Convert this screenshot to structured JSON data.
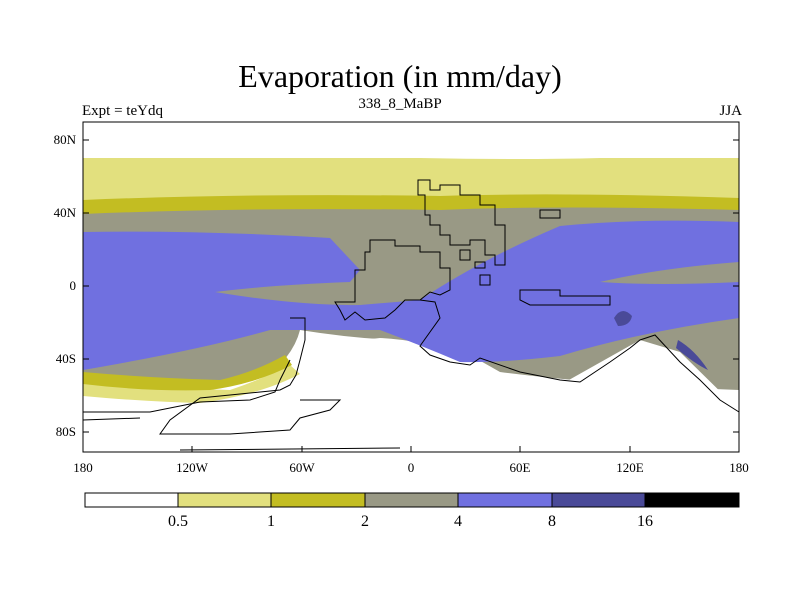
{
  "title": "Evaporation (in mm/day)",
  "subtitle_left": "Expt = teYdq",
  "subtitle_center": "338_8_MaBP",
  "subtitle_right": "JJA",
  "lat_ticks": [
    "80N",
    "40N",
    "0",
    "40S",
    "80S"
  ],
  "lon_ticks": [
    "180",
    "120W",
    "60W",
    "0",
    "60E",
    "120E",
    "180"
  ],
  "colorbar": {
    "levels": [
      "0.5",
      "1",
      "2",
      "4",
      "8",
      "16"
    ],
    "colors": [
      "#ffffff",
      "#e2e07e",
      "#c3bd22",
      "#999985",
      "#7070e0",
      "#4a4a98",
      "#000000"
    ]
  }
}
